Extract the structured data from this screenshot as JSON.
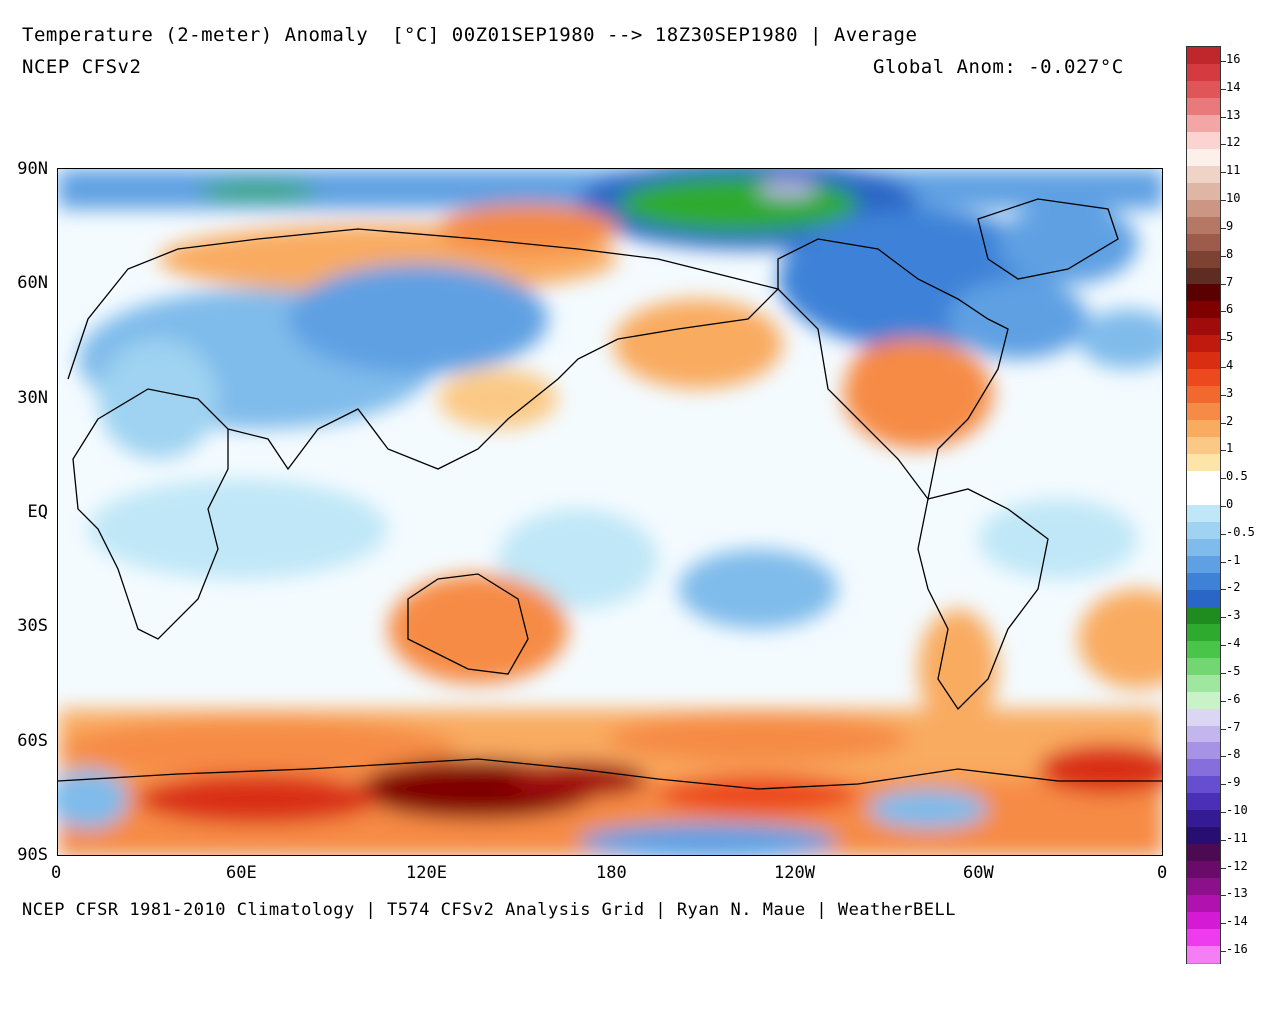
{
  "header": {
    "line1": "Temperature (2-meter) Anomaly  [°C] 00Z01SEP1980 --> 18Z30SEP1980 | Average",
    "line2": "NCEP CFSv2",
    "global_anom": "Global Anom: -0.027°C"
  },
  "footer": {
    "credit": "NCEP CFSR 1981-2010 Climatology | T574 CFSv2 Analysis Grid | Ryan N. Maue | WeatherBELL"
  },
  "map": {
    "lat_labels": [
      "90N",
      "60N",
      "30N",
      "EQ",
      "30S",
      "60S",
      "90S"
    ],
    "lon_labels": [
      "0",
      "60E",
      "120E",
      "180",
      "120W",
      "60W",
      "0"
    ],
    "regions": [
      {
        "name": "arctic-ocean-cold",
        "anomaly": -4
      },
      {
        "name": "eastern-united-states-warm",
        "anomaly": 4
      },
      {
        "name": "canada-cold",
        "anomaly": -3
      },
      {
        "name": "north-pacific-warm",
        "anomaly": 2
      },
      {
        "name": "australia-warm",
        "anomaly": 2
      },
      {
        "name": "antarctica-warm",
        "anomaly": 6
      }
    ]
  },
  "colorbar": {
    "labels": [
      "16",
      "14",
      "13",
      "12",
      "11",
      "10",
      "9",
      "8",
      "7",
      "6",
      "5",
      "4",
      "3",
      "2",
      "1",
      "0.5",
      "0",
      "-0.5",
      "-1",
      "-2",
      "-3",
      "-4",
      "-5",
      "-6",
      "-7",
      "-8",
      "-9",
      "-10",
      "-11",
      "-12",
      "-13",
      "-14",
      "-16"
    ],
    "colors": [
      "#c0272d",
      "#d43a3f",
      "#e05658",
      "#e97a7b",
      "#f3a6a6",
      "#fbd3d0",
      "#fdf0ea",
      "#efd3c7",
      "#dfb6a6",
      "#cb9784",
      "#b47865",
      "#9c5b4b",
      "#7e4233",
      "#5e2c22",
      "#5a0000",
      "#800000",
      "#a00c0c",
      "#c01a0e",
      "#d92e12",
      "#ec4a1e",
      "#f2692f",
      "#f68b45",
      "#f9ab60",
      "#fbc985",
      "#fde4a8",
      "#ffffff",
      "#ffffff",
      "#bfe7f7",
      "#9fd3f1",
      "#7fbbeb",
      "#5ea0e3",
      "#3e82d8",
      "#2a66c6",
      "#1e8c1e",
      "#2eab2e",
      "#49c649",
      "#72d772",
      "#9fe69f",
      "#c9f2c9",
      "#dcd6f5",
      "#c3b6ef",
      "#a693e6",
      "#866fdc",
      "#664ed0",
      "#4a30b7",
      "#351b93",
      "#260f70",
      "#4b0a52",
      "#6a0a6a",
      "#8c0f8c",
      "#b012b0",
      "#d41ad4",
      "#ee3bee",
      "#f57ef5"
    ]
  }
}
